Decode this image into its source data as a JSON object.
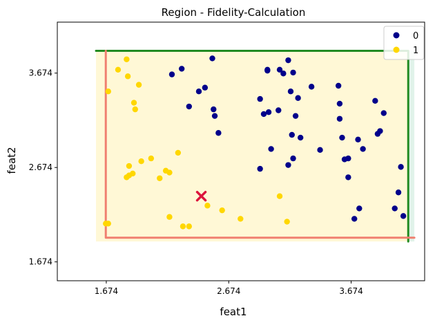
{
  "chart_data": {
    "type": "scatter",
    "title": "Region - Fidelity-Calculation",
    "xlabel": "feat1",
    "ylabel": "feat2",
    "xlim": [
      1.274,
      4.274
    ],
    "ylim": [
      1.474,
      4.214
    ],
    "xticks": [
      1.674,
      2.674,
      3.674
    ],
    "yticks": [
      1.674,
      2.674,
      3.674
    ],
    "xtick_labels": [
      "1.674",
      "2.674",
      "3.674"
    ],
    "ytick_labels": [
      "1.674",
      "2.674",
      "3.674"
    ],
    "grid": false,
    "legend_position": "top-right",
    "colors": {
      "class0": "#00008b",
      "class1": "#ffd700",
      "region_fill_1": "#fff8d6",
      "region_fill_2": "#e1f3ea",
      "green_boundary": "#228b22",
      "red_boundary": "#f08070",
      "query_marker": "#dc143c"
    },
    "regions": [
      {
        "label": "class-1 region",
        "x": [
          1.59,
          4.14
        ],
        "y": [
          1.89,
          3.91
        ],
        "color": "#fff8d6"
      },
      {
        "label": "class-0 strip",
        "x": [
          4.14,
          4.19
        ],
        "y": [
          1.89,
          3.91
        ],
        "color": "#e1f3ea"
      }
    ],
    "boundaries": [
      {
        "color": "#228b22",
        "points": [
          [
            1.59,
            3.91
          ],
          [
            4.14,
            3.91
          ],
          [
            4.14,
            1.89
          ]
        ]
      },
      {
        "color": "#f08070",
        "points": [
          [
            1.67,
            3.91
          ],
          [
            1.67,
            1.93
          ],
          [
            4.19,
            1.93
          ]
        ]
      }
    ],
    "query_point": {
      "x": 2.45,
      "y": 2.37,
      "color": "#dc143c"
    },
    "series": [
      {
        "name": "0",
        "color": "#00008b",
        "points": [
          [
            2.21,
            3.66
          ],
          [
            2.29,
            3.72
          ],
          [
            2.54,
            3.83
          ],
          [
            2.43,
            3.48
          ],
          [
            2.48,
            3.52
          ],
          [
            2.35,
            3.32
          ],
          [
            2.55,
            3.29
          ],
          [
            2.56,
            3.22
          ],
          [
            2.59,
            3.04
          ],
          [
            2.93,
            3.4
          ],
          [
            2.99,
            3.71
          ],
          [
            2.99,
            3.7
          ],
          [
            2.96,
            3.24
          ],
          [
            3.0,
            3.26
          ],
          [
            3.02,
            2.87
          ],
          [
            3.09,
            3.71
          ],
          [
            3.12,
            3.67
          ],
          [
            3.16,
            3.81
          ],
          [
            3.18,
            3.48
          ],
          [
            3.2,
            3.68
          ],
          [
            3.22,
            3.22
          ],
          [
            3.24,
            3.41
          ],
          [
            2.93,
            2.66
          ],
          [
            3.08,
            3.28
          ],
          [
            3.19,
            3.02
          ],
          [
            3.26,
            2.99
          ],
          [
            3.2,
            2.77
          ],
          [
            3.16,
            2.7
          ],
          [
            3.35,
            3.53
          ],
          [
            3.42,
            2.86
          ],
          [
            3.57,
            3.54
          ],
          [
            3.58,
            3.35
          ],
          [
            3.58,
            3.19
          ],
          [
            3.6,
            2.99
          ],
          [
            3.62,
            2.76
          ],
          [
            3.65,
            2.77
          ],
          [
            3.65,
            2.57
          ],
          [
            3.7,
            2.13
          ],
          [
            3.74,
            2.24
          ],
          [
            3.73,
            2.97
          ],
          [
            3.77,
            2.87
          ],
          [
            3.87,
            3.38
          ],
          [
            3.89,
            3.03
          ],
          [
            3.91,
            3.06
          ],
          [
            3.94,
            3.25
          ],
          [
            4.03,
            2.24
          ],
          [
            4.06,
            2.41
          ],
          [
            4.08,
            2.68
          ],
          [
            4.1,
            2.16
          ]
        ]
      },
      {
        "name": "1",
        "color": "#ffd700",
        "points": [
          [
            1.69,
            3.48
          ],
          [
            1.77,
            3.71
          ],
          [
            1.84,
            3.82
          ],
          [
            1.85,
            3.64
          ],
          [
            1.9,
            3.36
          ],
          [
            1.91,
            3.29
          ],
          [
            1.94,
            3.55
          ],
          [
            1.86,
            2.69
          ],
          [
            1.96,
            2.74
          ],
          [
            2.04,
            2.77
          ],
          [
            1.84,
            2.57
          ],
          [
            1.86,
            2.59
          ],
          [
            1.89,
            2.61
          ],
          [
            1.69,
            2.08
          ],
          [
            1.67,
            2.08
          ],
          [
            2.11,
            2.56
          ],
          [
            2.16,
            2.64
          ],
          [
            2.19,
            2.62
          ],
          [
            2.19,
            2.15
          ],
          [
            2.26,
            2.83
          ],
          [
            2.3,
            2.05
          ],
          [
            2.35,
            2.05
          ],
          [
            2.5,
            2.27
          ],
          [
            2.62,
            2.22
          ],
          [
            2.77,
            2.13
          ],
          [
            3.09,
            2.37
          ],
          [
            3.15,
            2.1
          ]
        ]
      }
    ]
  }
}
